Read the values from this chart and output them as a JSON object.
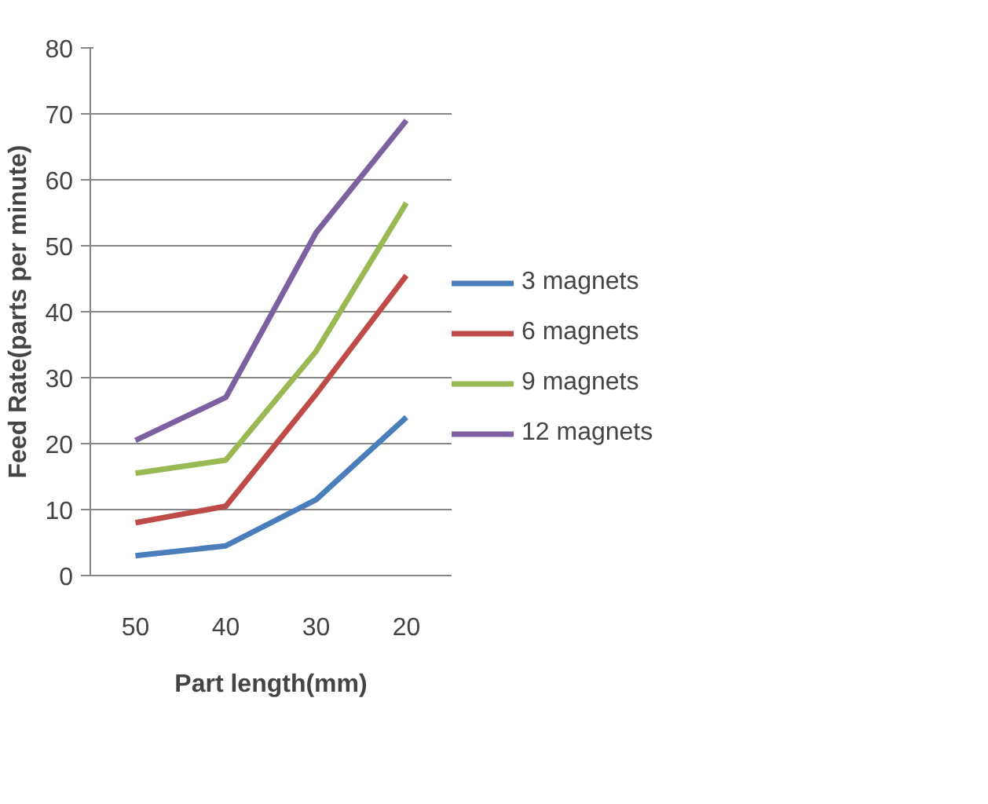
{
  "chart_data": {
    "type": "line",
    "xlabel": "Part length(mm)",
    "ylabel": "Feed Rate(parts per minute)",
    "categories": [
      "50",
      "40",
      "30",
      "20"
    ],
    "series": [
      {
        "name": "3 magnets",
        "color": "#4a7ebb",
        "values": [
          3,
          4.5,
          11.5,
          24
        ]
      },
      {
        "name": "6 magnets",
        "color": "#be4b48",
        "values": [
          8,
          10.5,
          27.5,
          45.5
        ]
      },
      {
        "name": "9 magnets",
        "color": "#98b954",
        "values": [
          15.5,
          17.5,
          34,
          56.5
        ]
      },
      {
        "name": "12 magnets",
        "color": "#7d60a0",
        "values": [
          20.5,
          27,
          52,
          69
        ]
      }
    ],
    "ylim": [
      0,
      80
    ],
    "yticks": [
      0,
      10,
      20,
      30,
      40,
      50,
      60,
      70,
      80
    ],
    "grid": "y",
    "legend": "right",
    "marker": "none",
    "line_style": "solid"
  }
}
